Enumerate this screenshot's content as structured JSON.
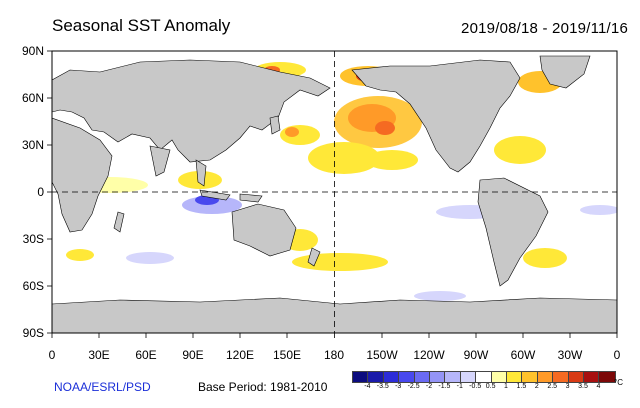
{
  "title": "Seasonal SST Anomaly",
  "date_range": "2019/08/18 - 2019/11/16",
  "y_axis_labels": [
    "90N",
    "60N",
    "30N",
    "0",
    "30S",
    "60S",
    "90S"
  ],
  "x_axis_labels": [
    "0",
    "30E",
    "60E",
    "90E",
    "120E",
    "150E",
    "180",
    "150W",
    "120W",
    "90W",
    "60W",
    "30W",
    "0"
  ],
  "credit": "NOAA/ESRL/PSD",
  "base_period": "Base Period: 1981-2010",
  "colorbar": {
    "ticks": [
      "-4",
      "-3.5",
      "-3",
      "-2.5",
      "-2",
      "-1.5",
      "-1",
      "-0.5",
      "0.5",
      "1",
      "1.5",
      "2",
      "2.5",
      "3",
      "3.5",
      "4"
    ],
    "unit": "°C",
    "colors": [
      "#0c0c7e",
      "#1a1aaa",
      "#2c2cd8",
      "#4848ee",
      "#6a6af2",
      "#9494f6",
      "#b6b6fa",
      "#d6d6fc",
      "#ffffff",
      "#ffffa8",
      "#ffe838",
      "#ffc22c",
      "#ff9a28",
      "#f56a22",
      "#d83a14",
      "#a81010",
      "#7c0808"
    ]
  },
  "map": {
    "land_color": "#c8c8c8",
    "ocean_color": "#ffffff",
    "reference_lines": [
      "equator",
      "dateline"
    ],
    "lon_range": [
      0,
      360
    ],
    "lat_range": [
      -90,
      90
    ]
  }
}
